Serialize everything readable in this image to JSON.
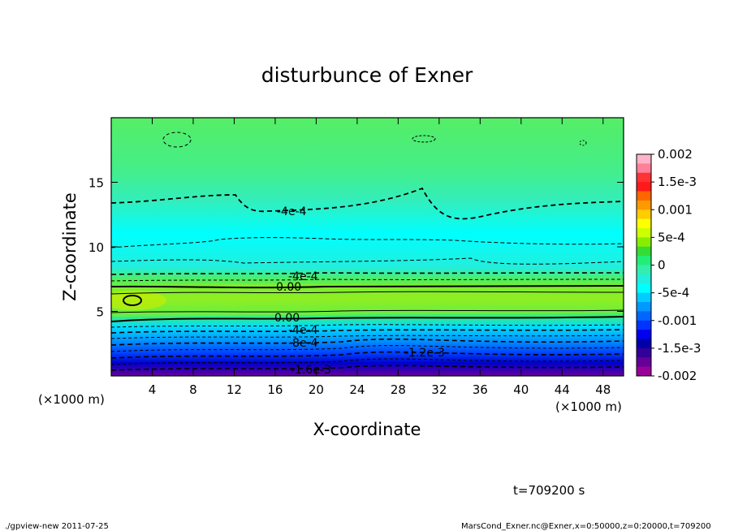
{
  "chart_data": {
    "type": "heatmap",
    "title": "disturbunce of Exner",
    "xlabel": "X-coordinate",
    "ylabel": "Z-coordinate",
    "x_unit_note": "(×1000 m)",
    "y_unit_note": "(×1000 m)",
    "xlim": [
      0,
      50
    ],
    "ylim": [
      0,
      20
    ],
    "x_ticks": [
      "4",
      "8",
      "12",
      "16",
      "20",
      "24",
      "28",
      "32",
      "36",
      "40",
      "44",
      "48"
    ],
    "y_ticks": [
      "5",
      "10",
      "15"
    ],
    "colorbar": {
      "range": [
        -0.002,
        0.002
      ],
      "tick_labels": [
        "0.002",
        "1.5e-3",
        "0.001",
        "5e-4",
        "0",
        "-5e-4",
        "-0.001",
        "-1.5e-3",
        "-0.002"
      ],
      "colors": [
        "#ffb3c6",
        "#ff8099",
        "#ff3333",
        "#ff1a1a",
        "#ff6600",
        "#ff9900",
        "#ffcc00",
        "#ffff00",
        "#ccff00",
        "#88ee00",
        "#33dd33",
        "#22ee77",
        "#33eeaa",
        "#22eedd",
        "#00ffff",
        "#00ccff",
        "#0099ff",
        "#0066ff",
        "#0033ff",
        "#0000ee",
        "#0000aa",
        "#330099",
        "#660099",
        "#990099"
      ]
    },
    "contour_labels": [
      "-4e-4",
      "-4e-4",
      "0.00",
      "0.00",
      "-4e-4",
      "-8e-4",
      "-1.2e-3",
      "-1.6e-3"
    ],
    "time": "t=709200 s"
  },
  "footer": {
    "left": "./gpview-new   2011-07-25",
    "right": "MarsCond_Exner.nc@Exner,x=0:50000,z=0:20000,t=709200"
  }
}
